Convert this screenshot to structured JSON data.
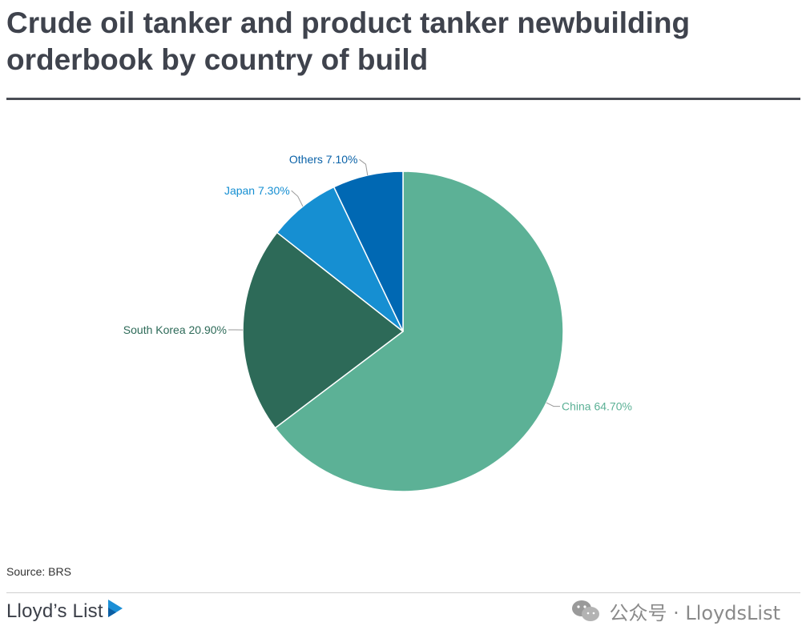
{
  "title": "Crude oil tanker and product tanker newbuilding orderbook by country of build",
  "source": "Source: BRS",
  "brand": "Lloyd’s List",
  "watermark": "公众号 · LloydsList",
  "chart_data": {
    "type": "pie",
    "title": "Crude oil tanker and product tanker newbuilding orderbook by country of build",
    "start": "12 o'clock",
    "direction": "clockwise",
    "slices": [
      {
        "label": "China 64.70%",
        "name": "China",
        "value": 64.7,
        "color": "#5cb196",
        "label_color": "#5cb196"
      },
      {
        "label": "South Korea 20.90%",
        "name": "South Korea",
        "value": 20.9,
        "color": "#2d6a58",
        "label_color": "#2d6a58"
      },
      {
        "label": "Japan 7.30%",
        "name": "Japan",
        "value": 7.3,
        "color": "#168fd2",
        "label_color": "#168fd2"
      },
      {
        "label": "Others 7.10%",
        "name": "Others",
        "value": 7.1,
        "color": "#0068b3",
        "label_color": "#0a62a8"
      }
    ]
  }
}
